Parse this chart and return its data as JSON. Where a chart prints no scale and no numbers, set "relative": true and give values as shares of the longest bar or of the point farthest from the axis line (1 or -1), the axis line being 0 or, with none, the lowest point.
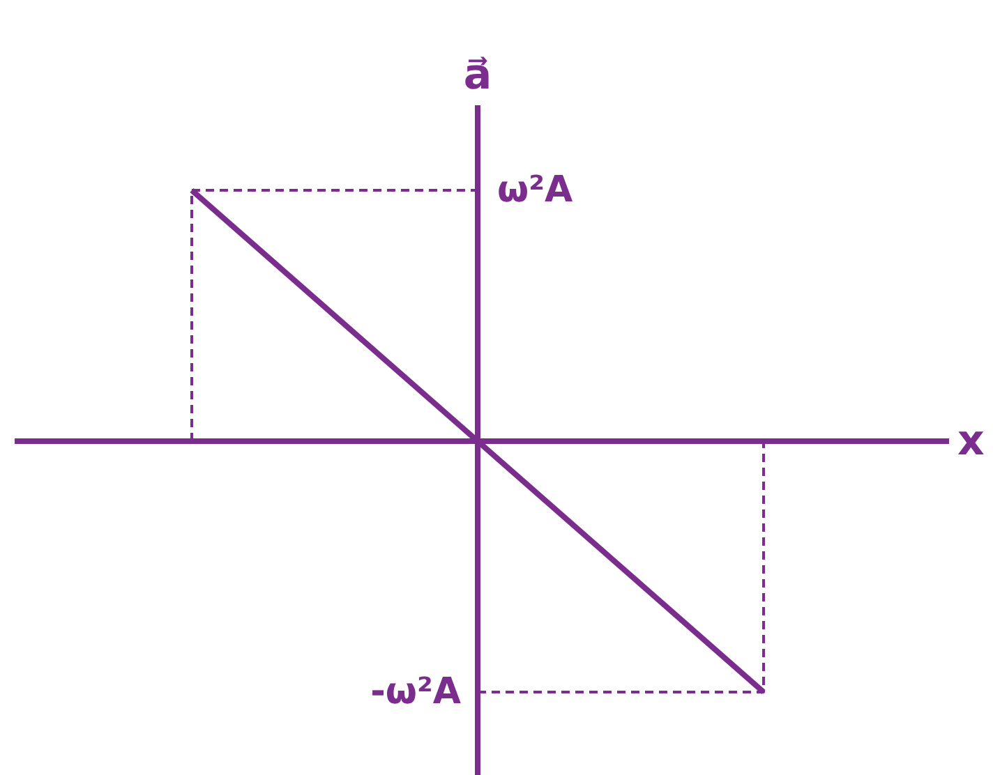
{
  "chart_data": {
    "type": "line",
    "xlabel": "x",
    "ylabel": "a⃗",
    "categories": [
      null,
      null,
      null
    ],
    "relative": true,
    "annotations": [
      "ω²A",
      "-ω²A"
    ],
    "ref_lines": [
      {
        "axis": "y",
        "value": 0,
        "color": "#7b2d8e"
      }
    ],
    "grid": false,
    "series": [
      {
        "color": "#7b2d8e",
        "values": [
          1,
          0,
          -1
        ],
        "line_style": "solid"
      },
      {
        "type": "step",
        "color": "#7b2d8e",
        "values": [
          0,
          1,
          null
        ],
        "line_style": "dashed"
      },
      {
        "type": "step",
        "color": "#7b2d8e",
        "values": [
          null,
          -1,
          0
        ],
        "line_style": "dashed"
      }
    ]
  }
}
